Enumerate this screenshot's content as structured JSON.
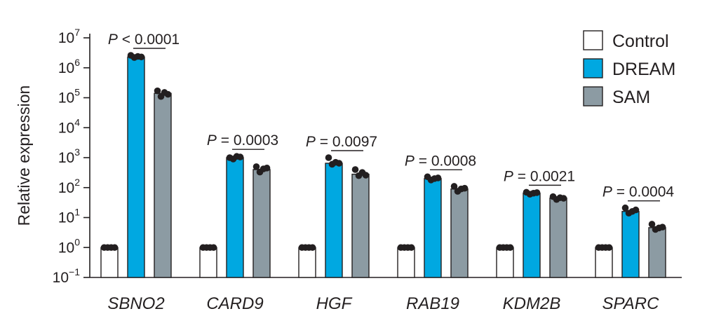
{
  "chart_data": {
    "type": "bar",
    "yscale": "log",
    "ylabel": "Relative expression",
    "ylim": [
      0.1,
      10000000
    ],
    "yticks": [
      {
        "base": "10",
        "exp": "7",
        "value": 10000000
      },
      {
        "base": "10",
        "exp": "6",
        "value": 1000000
      },
      {
        "base": "10",
        "exp": "5",
        "value": 100000
      },
      {
        "base": "10",
        "exp": "4",
        "value": 10000
      },
      {
        "base": "10",
        "exp": "3",
        "value": 1000
      },
      {
        "base": "10",
        "exp": "2",
        "value": 100
      },
      {
        "base": "10",
        "exp": "1",
        "value": 10
      },
      {
        "base": "10",
        "exp": "0",
        "value": 1
      },
      {
        "base": "10",
        "exp": "−1",
        "value": 0.1
      }
    ],
    "categories": [
      "SBNO2",
      "CARD9",
      "HGF",
      "RAB19",
      "KDM2B",
      "SPARC"
    ],
    "series": [
      {
        "name": "Control",
        "color": "#ffffff",
        "values": [
          1,
          1,
          1,
          1,
          1,
          1
        ],
        "points": [
          [
            1,
            1,
            1,
            1
          ],
          [
            1,
            1,
            1,
            1
          ],
          [
            1,
            1,
            1,
            1
          ],
          [
            1,
            1,
            1,
            1
          ],
          [
            1,
            1,
            1,
            1
          ],
          [
            1,
            1,
            1,
            1
          ]
        ]
      },
      {
        "name": "DREAM",
        "color": "#00a8e1",
        "values": [
          2300000,
          1000,
          650,
          200,
          65,
          16
        ],
        "points": [
          [
            2600000,
            2200000,
            2400000,
            2300000
          ],
          [
            1000,
            900,
            1100,
            1050
          ],
          [
            1000,
            600,
            700,
            650
          ],
          [
            230,
            180,
            200,
            210
          ],
          [
            70,
            60,
            65,
            68
          ],
          [
            21,
            14,
            16,
            18
          ]
        ]
      },
      {
        "name": "SAM",
        "color": "#8c9ba3",
        "values": [
          140000,
          400,
          280,
          90,
          45,
          4.6
        ],
        "points": [
          [
            170000,
            110000,
            150000,
            130000
          ],
          [
            500,
            330,
            420,
            450
          ],
          [
            400,
            250,
            320,
            260
          ],
          [
            110,
            75,
            90,
            95
          ],
          [
            50,
            40,
            46,
            44
          ],
          [
            6,
            4,
            4.5,
            4.8
          ]
        ]
      }
    ],
    "annotations": [
      "P < 0.0001",
      "P = 0.0003",
      "P = 0.0097",
      "P = 0.0008",
      "P = 0.0021",
      "P = 0.0004"
    ],
    "legend": {
      "placement": "top-right"
    },
    "grid": false
  }
}
